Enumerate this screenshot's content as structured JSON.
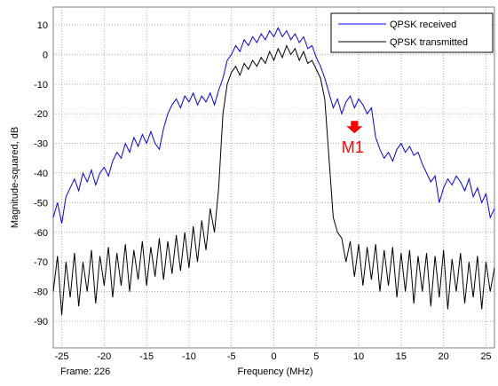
{
  "chart_data": {
    "type": "line",
    "xlabel": "Frequency (MHz)",
    "ylabel": "Magnitude-squared, dB",
    "footer": "Frame: 226",
    "xlim": [
      -26,
      26
    ],
    "ylim": [
      -99,
      16
    ],
    "xticks": [
      -25,
      -20,
      -15,
      -10,
      -5,
      0,
      5,
      10,
      15,
      20,
      25
    ],
    "yticks": [
      10,
      0,
      -10,
      -20,
      -30,
      -40,
      -50,
      -60,
      -70,
      -80,
      -90
    ],
    "grid": true,
    "legend": "upper right",
    "annotation": {
      "text": "M1",
      "color": "#ff0000",
      "x": 9.5,
      "y": -23
    },
    "x": [
      -26,
      -25.5,
      -25,
      -24.5,
      -24,
      -23.5,
      -23,
      -22.5,
      -22,
      -21.5,
      -21,
      -20.5,
      -20,
      -19.5,
      -19,
      -18.5,
      -18,
      -17.5,
      -17,
      -16.5,
      -16,
      -15.5,
      -15,
      -14.5,
      -14,
      -13.5,
      -13,
      -12.5,
      -12,
      -11.5,
      -11,
      -10.5,
      -10,
      -9.5,
      -9,
      -8.5,
      -8,
      -7.5,
      -7,
      -6.5,
      -6,
      -5.5,
      -5,
      -4.5,
      -4,
      -3.5,
      -3,
      -2.5,
      -2,
      -1.5,
      -1,
      -0.5,
      0,
      0.5,
      1,
      1.5,
      2,
      2.5,
      3,
      3.5,
      4,
      4.5,
      5,
      5.5,
      6,
      6.5,
      7,
      7.5,
      8,
      8.5,
      9,
      9.5,
      10,
      10.5,
      11,
      11.5,
      12,
      12.5,
      13,
      13.5,
      14,
      14.5,
      15,
      15.5,
      16,
      16.5,
      17,
      17.5,
      18,
      18.5,
      19,
      19.5,
      20,
      20.5,
      21,
      21.5,
      22,
      22.5,
      23,
      23.5,
      24,
      24.5,
      25,
      25.5,
      26
    ],
    "series": [
      {
        "name": "QPSK received",
        "color": "#0000ff",
        "values": [
          -55,
          -50,
          -57,
          -48,
          -45,
          -42,
          -46,
          -40,
          -43,
          -39,
          -44,
          -40,
          -38,
          -41,
          -36,
          -33,
          -35,
          -30,
          -33,
          -28,
          -31,
          -27,
          -30,
          -26,
          -30,
          -32,
          -25,
          -20,
          -17,
          -15,
          -18,
          -14,
          -16,
          -13,
          -17,
          -14,
          -16,
          -13,
          -17,
          -12,
          -8,
          -2,
          0,
          3,
          1,
          5,
          3,
          6,
          4,
          7,
          5,
          8,
          6,
          9,
          6,
          8,
          5,
          7,
          4,
          6,
          2,
          3,
          -1,
          -4,
          -8,
          -13,
          -18,
          -15,
          -20,
          -16,
          -14,
          -18,
          -15,
          -17,
          -20,
          -18,
          -28,
          -32,
          -35,
          -33,
          -36,
          -32,
          -30,
          -33,
          -31,
          -34,
          -33,
          -37,
          -40,
          -43,
          -41,
          -50,
          -45,
          -42,
          -44,
          -41,
          -43,
          -46,
          -42,
          -48,
          -45,
          -50,
          -47,
          -55,
          -52
        ]
      },
      {
        "name": "QPSK transmitted",
        "color": "#000000",
        "values": [
          -80,
          -68,
          -88,
          -70,
          -82,
          -67,
          -85,
          -70,
          -80,
          -66,
          -84,
          -68,
          -78,
          -65,
          -82,
          -67,
          -78,
          -64,
          -80,
          -66,
          -76,
          -63,
          -78,
          -65,
          -75,
          -62,
          -76,
          -63,
          -74,
          -61,
          -73,
          -60,
          -72,
          -58,
          -70,
          -56,
          -66,
          -52,
          -60,
          -45,
          -20,
          -10,
          -6,
          -4,
          -7,
          -3,
          -5,
          -2,
          -4,
          -1,
          -3,
          1,
          -2,
          2,
          -1,
          3,
          0,
          2,
          -2,
          1,
          -3,
          -2,
          -5,
          -8,
          -15,
          -35,
          -55,
          -60,
          -62,
          -70,
          -63,
          -75,
          -64,
          -78,
          -65,
          -76,
          -64,
          -80,
          -66,
          -78,
          -65,
          -82,
          -67,
          -80,
          -66,
          -84,
          -68,
          -80,
          -67,
          -85,
          -68,
          -82,
          -66,
          -86,
          -69,
          -80,
          -67,
          -84,
          -70,
          -82,
          -68,
          -86,
          -70,
          -80,
          -72
        ]
      }
    ]
  }
}
